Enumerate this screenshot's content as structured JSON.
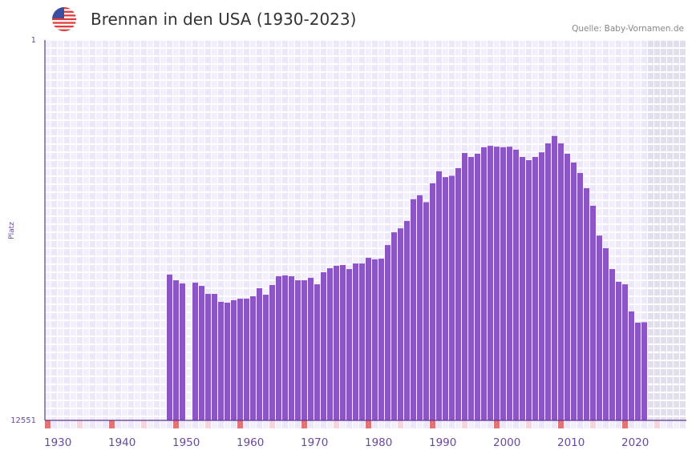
{
  "header": {
    "title": "Brennan in den USA (1930-2023)",
    "source": "Quelle: Baby-Vornamen.de",
    "flag_icon": "us-flag-icon"
  },
  "colors": {
    "bar": "#8c55c6",
    "axis": "#5b3a8c",
    "decade_marker": "#e57373",
    "half_decade_marker": "#f5d6df",
    "cell_a": "#f3f0fb",
    "cell_b": "#ede8f8",
    "future": "#e2dfec",
    "tick_label": "#6a4a9c"
  },
  "chart_data": {
    "type": "bar",
    "title": "Brennan in den USA (1930-2023)",
    "ylabel": "Platz",
    "xlabel": "",
    "y_scale": "log-inverted",
    "ylim": [
      12551,
      1
    ],
    "y_tick_labels": [
      "1",
      "12551"
    ],
    "xlim": [
      1930,
      2029
    ],
    "x_tick_labels": [
      "1930",
      "1940",
      "1950",
      "1960",
      "1970",
      "1980",
      "1990",
      "2000",
      "2010",
      "2020"
    ],
    "grid": true,
    "legend": "none",
    "x": [
      1949,
      1950,
      1951,
      1952,
      1953,
      1954,
      1955,
      1956,
      1957,
      1958,
      1959,
      1960,
      1961,
      1962,
      1963,
      1964,
      1965,
      1966,
      1967,
      1968,
      1969,
      1970,
      1971,
      1972,
      1973,
      1974,
      1975,
      1976,
      1977,
      1978,
      1979,
      1980,
      1981,
      1982,
      1983,
      1984,
      1985,
      1986,
      1987,
      1988,
      1989,
      1990,
      1991,
      1992,
      1993,
      1994,
      1995,
      1996,
      1997,
      1998,
      1999,
      2000,
      2001,
      2002,
      2003,
      2004,
      2005,
      2006,
      2007,
      2008,
      2009,
      2010,
      2011,
      2012,
      2013,
      2014,
      2015,
      2016,
      2017,
      2018,
      2019,
      2020,
      2021,
      2022,
      2023
    ],
    "values": [
      337,
      388,
      420,
      null,
      412,
      446,
      544,
      544,
      663,
      677,
      637,
      613,
      613,
      577,
      473,
      555,
      437,
      351,
      344,
      351,
      388,
      388,
      365,
      429,
      318,
      288,
      271,
      266,
      294,
      256,
      256,
      222,
      231,
      227,
      162,
      118,
      107,
      89,
      52,
      47,
      56,
      35,
      26,
      30,
      29,
      24,
      16.5,
      18.2,
      16.8,
      14.3,
      13.8,
      14.1,
      14.3,
      14.1,
      15.2,
      18.2,
      19.7,
      18.2,
      16.2,
      13.0,
      10.8,
      13.0,
      16.8,
      20.9,
      27.1,
      39.5,
      61.1,
      128,
      175,
      294,
      403,
      429,
      841,
      1111,
      1100
    ]
  }
}
